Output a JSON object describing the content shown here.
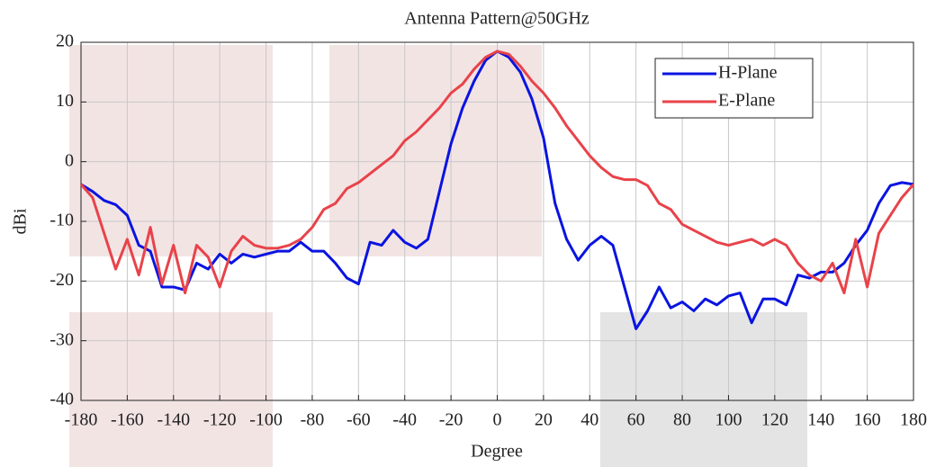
{
  "chart_data": {
    "type": "line",
    "title": "Antenna Pattern@50GHz",
    "xlabel": "Degree",
    "ylabel": "dBi",
    "x": [
      -180,
      -175,
      -170,
      -165,
      -160,
      -155,
      -150,
      -145,
      -140,
      -135,
      -130,
      -125,
      -120,
      -115,
      -110,
      -105,
      -100,
      -95,
      -90,
      -85,
      -80,
      -75,
      -70,
      -65,
      -60,
      -55,
      -50,
      -45,
      -40,
      -35,
      -30,
      -25,
      -20,
      -15,
      -10,
      -5,
      0,
      5,
      10,
      15,
      20,
      25,
      30,
      35,
      40,
      45,
      50,
      55,
      60,
      65,
      70,
      75,
      80,
      85,
      90,
      95,
      100,
      105,
      110,
      115,
      120,
      125,
      130,
      135,
      140,
      145,
      150,
      155,
      160,
      165,
      170,
      175,
      180
    ],
    "series": [
      {
        "name": "H-Plane",
        "color": "#0a14e0",
        "values": [
          -3.8,
          -5,
          -6.5,
          -7.2,
          -9,
          -14,
          -15,
          -21,
          -21,
          -21.5,
          -17,
          -18,
          -15.5,
          -17,
          -15.5,
          -16,
          -15.5,
          -15,
          -15,
          -13.5,
          -15,
          -15,
          -17,
          -19.5,
          -20.5,
          -13.5,
          -14,
          -11.5,
          -13.5,
          -14.5,
          -13,
          -5,
          3,
          9,
          13.5,
          17,
          18.5,
          17.5,
          15,
          10.5,
          4,
          -7,
          -13,
          -16.5,
          -14,
          -12.5,
          -14,
          -21,
          -28,
          -25,
          -21,
          -24.5,
          -23.5,
          -25,
          -23,
          -24,
          -22.5,
          -22,
          -27,
          -23,
          -23,
          -24,
          -19,
          -19.5,
          -18.5,
          -18.5,
          -17,
          -14,
          -11.5,
          -7,
          -4,
          -3.5,
          -3.8
        ]
      },
      {
        "name": "E-Plane",
        "color": "#e8434a",
        "values": [
          -3.8,
          -6,
          -12,
          -18,
          -13,
          -19,
          -11,
          -20.5,
          -14,
          -22,
          -14,
          -16,
          -21,
          -15,
          -12.5,
          -14,
          -14.5,
          -14.5,
          -14,
          -13,
          -11,
          -8,
          -7,
          -4.5,
          -3.5,
          -2,
          -0.5,
          1,
          3.5,
          5,
          7,
          9,
          11.5,
          13,
          15.5,
          17.5,
          18.5,
          18,
          16,
          13.5,
          11.5,
          9,
          6,
          3.5,
          1,
          -1,
          -2.5,
          -3,
          -3,
          -4,
          -7,
          -8,
          -10.5,
          -11.5,
          -12.5,
          -13.5,
          -14,
          -13.5,
          -13,
          -14,
          -13,
          -14,
          -17,
          -19,
          -20,
          -17,
          -22,
          -13,
          -21,
          -12,
          -9,
          -6,
          -3.8
        ]
      }
    ],
    "xlim": [
      -180,
      180
    ],
    "xticks": [
      -180,
      -160,
      -140,
      -120,
      -100,
      -80,
      -60,
      -40,
      -20,
      0,
      20,
      40,
      60,
      80,
      100,
      120,
      140,
      160,
      180
    ],
    "ylim": [
      -40,
      20
    ],
    "yticks": [
      -40,
      -30,
      -20,
      -10,
      0,
      10,
      20
    ],
    "grid": true,
    "legend": "upper right"
  }
}
